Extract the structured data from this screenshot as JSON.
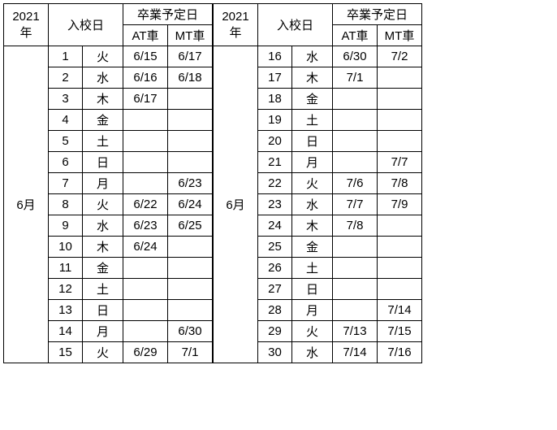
{
  "header": {
    "year": "2021年",
    "enrollment": "入校日",
    "graduation": "卒業予定日",
    "at": "AT車",
    "mt": "MT車",
    "month": "6月"
  },
  "left": [
    {
      "d": "1",
      "w": "火",
      "at": "6/15",
      "mt": "6/17"
    },
    {
      "d": "2",
      "w": "水",
      "at": "6/16",
      "mt": "6/18"
    },
    {
      "d": "3",
      "w": "木",
      "at": "6/17",
      "mt": ""
    },
    {
      "d": "4",
      "w": "金",
      "at": "",
      "mt": ""
    },
    {
      "d": "5",
      "w": "土",
      "at": "",
      "mt": ""
    },
    {
      "d": "6",
      "w": "日",
      "at": "",
      "mt": ""
    },
    {
      "d": "7",
      "w": "月",
      "at": "",
      "mt": "6/23"
    },
    {
      "d": "8",
      "w": "火",
      "at": "6/22",
      "mt": "6/24"
    },
    {
      "d": "9",
      "w": "水",
      "at": "6/23",
      "mt": "6/25"
    },
    {
      "d": "10",
      "w": "木",
      "at": "6/24",
      "mt": ""
    },
    {
      "d": "11",
      "w": "金",
      "at": "",
      "mt": ""
    },
    {
      "d": "12",
      "w": "土",
      "at": "",
      "mt": ""
    },
    {
      "d": "13",
      "w": "日",
      "at": "",
      "mt": ""
    },
    {
      "d": "14",
      "w": "月",
      "at": "",
      "mt": "6/30"
    },
    {
      "d": "15",
      "w": "火",
      "at": "6/29",
      "mt": "7/1"
    }
  ],
  "right": [
    {
      "d": "16",
      "w": "水",
      "at": "6/30",
      "mt": "7/2"
    },
    {
      "d": "17",
      "w": "木",
      "at": "7/1",
      "mt": ""
    },
    {
      "d": "18",
      "w": "金",
      "at": "",
      "mt": ""
    },
    {
      "d": "19",
      "w": "土",
      "at": "",
      "mt": ""
    },
    {
      "d": "20",
      "w": "日",
      "at": "",
      "mt": ""
    },
    {
      "d": "21",
      "w": "月",
      "at": "",
      "mt": "7/7"
    },
    {
      "d": "22",
      "w": "火",
      "at": "7/6",
      "mt": "7/8"
    },
    {
      "d": "23",
      "w": "水",
      "at": "7/7",
      "mt": "7/9"
    },
    {
      "d": "24",
      "w": "木",
      "at": "7/8",
      "mt": ""
    },
    {
      "d": "25",
      "w": "金",
      "at": "",
      "mt": ""
    },
    {
      "d": "26",
      "w": "土",
      "at": "",
      "mt": ""
    },
    {
      "d": "27",
      "w": "日",
      "at": "",
      "mt": ""
    },
    {
      "d": "28",
      "w": "月",
      "at": "",
      "mt": "7/14"
    },
    {
      "d": "29",
      "w": "火",
      "at": "7/13",
      "mt": "7/15"
    },
    {
      "d": "30",
      "w": "水",
      "at": "7/14",
      "mt": "7/16"
    }
  ]
}
